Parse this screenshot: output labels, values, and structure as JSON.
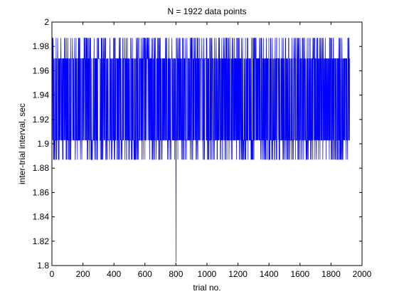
{
  "chart_data": {
    "type": "line",
    "title": "N = 1922 data points",
    "xlabel": "trial no.",
    "ylabel": "inter-trial interval, sec",
    "xlim": [
      0,
      2000
    ],
    "ylim": [
      1.8,
      2.0
    ],
    "xticks": [
      0,
      200,
      400,
      600,
      800,
      1000,
      1200,
      1400,
      1600,
      1800,
      2000
    ],
    "yticks": [
      1.8,
      1.82,
      1.84,
      1.86,
      1.88,
      1.9,
      1.92,
      1.94,
      1.96,
      1.98,
      2
    ],
    "xtick_labels": [
      "0",
      "200",
      "400",
      "600",
      "800",
      "1000",
      "1200",
      "1400",
      "1600",
      "1800",
      "2000"
    ],
    "ytick_labels": [
      "1.8",
      "1.82",
      "1.84",
      "1.86",
      "1.88",
      "1.9",
      "1.92",
      "1.94",
      "1.96",
      "1.98",
      "2"
    ],
    "grid": false,
    "series": [
      {
        "color": "#0000ff",
        "n_points": 1922,
        "x_range": [
          1,
          1922
        ],
        "levels": [
          1.887,
          1.903,
          1.97,
          1.987
        ],
        "outliers": [
          {
            "x": 800,
            "y": 1.803
          }
        ]
      }
    ]
  }
}
